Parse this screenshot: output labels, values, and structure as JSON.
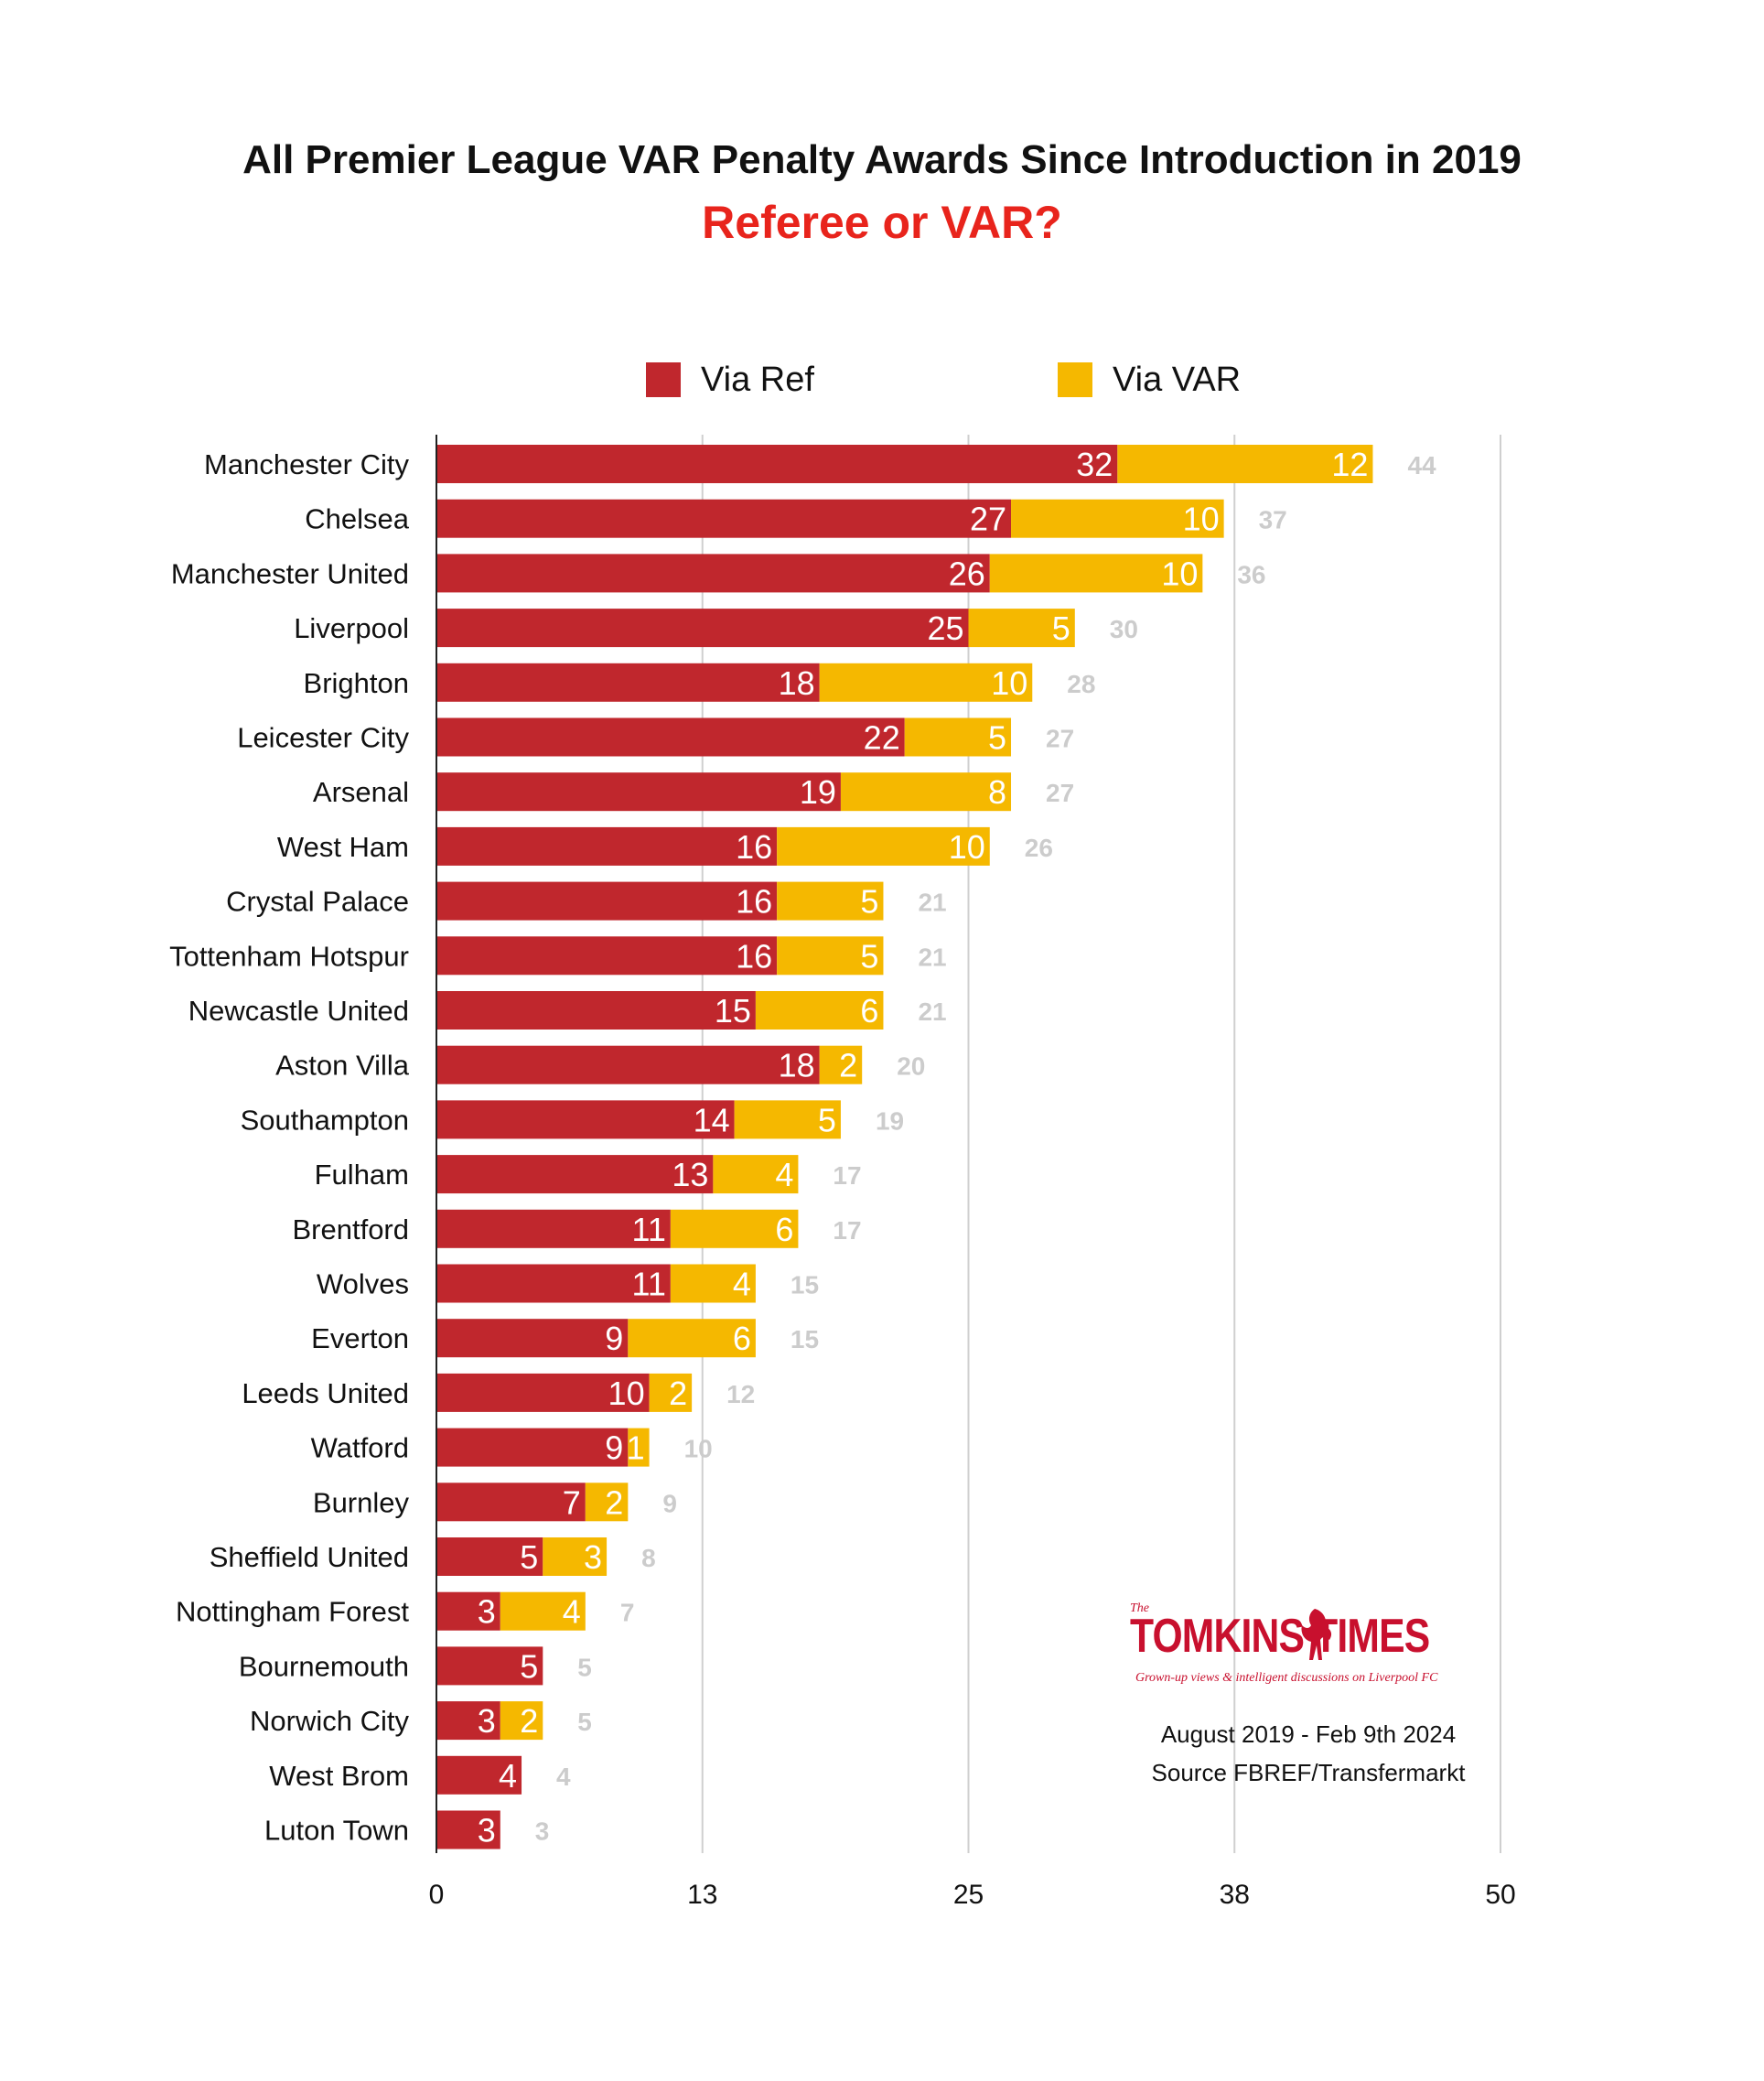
{
  "colors": {
    "ref": "#c0272d",
    "var": "#f5b800",
    "total": "#cccccc",
    "title": "#111111",
    "subtitle": "#e8241c",
    "grid": "#cfcfcf",
    "axis": "#222222"
  },
  "chart_data": {
    "type": "bar",
    "orientation": "horizontal",
    "stacked": true,
    "title": "All Premier League VAR Penalty Awards Since Introduction in 2019",
    "subtitle": "Referee or VAR?",
    "categories": [
      "Manchester City",
      "Chelsea",
      "Manchester United",
      "Liverpool",
      "Brighton",
      "Leicester City",
      "Arsenal",
      "West Ham",
      "Crystal Palace",
      "Tottenham Hotspur",
      "Newcastle United",
      "Aston Villa",
      "Southampton",
      "Fulham",
      "Brentford",
      "Wolves",
      "Everton",
      "Leeds United",
      "Watford",
      "Burnley",
      "Sheffield United",
      "Nottingham Forest",
      "Bournemouth",
      "Norwich City",
      "West Brom",
      "Luton Town"
    ],
    "series": [
      {
        "name": "Via Ref",
        "values": [
          32,
          27,
          26,
          25,
          18,
          22,
          19,
          16,
          16,
          16,
          15,
          18,
          14,
          13,
          11,
          11,
          9,
          10,
          9,
          7,
          5,
          3,
          5,
          3,
          4,
          3
        ]
      },
      {
        "name": "Via VAR",
        "values": [
          12,
          10,
          10,
          5,
          10,
          5,
          8,
          10,
          5,
          5,
          6,
          2,
          5,
          4,
          6,
          4,
          6,
          2,
          1,
          2,
          3,
          4,
          0,
          2,
          0,
          0
        ]
      }
    ],
    "totals": [
      44,
      37,
      36,
      30,
      28,
      27,
      27,
      26,
      21,
      21,
      21,
      20,
      19,
      17,
      17,
      15,
      15,
      12,
      10,
      9,
      8,
      7,
      5,
      5,
      4,
      3
    ],
    "xlim": [
      0,
      50
    ],
    "xticks": [
      0,
      12.5,
      25,
      37.5,
      50
    ],
    "xtick_labels": [
      "0",
      "13",
      "25",
      "38",
      "50"
    ],
    "grid": true,
    "legend_position": "top"
  },
  "branding": {
    "the": "The",
    "name": "TOMKINS TIMES",
    "tagline": "Grown-up views & intelligent discussions on Liverpool FC"
  },
  "notes": {
    "date_range": "August 2019 - Feb 9th 2024",
    "source": "Source FBREF/Transfermarkt"
  }
}
